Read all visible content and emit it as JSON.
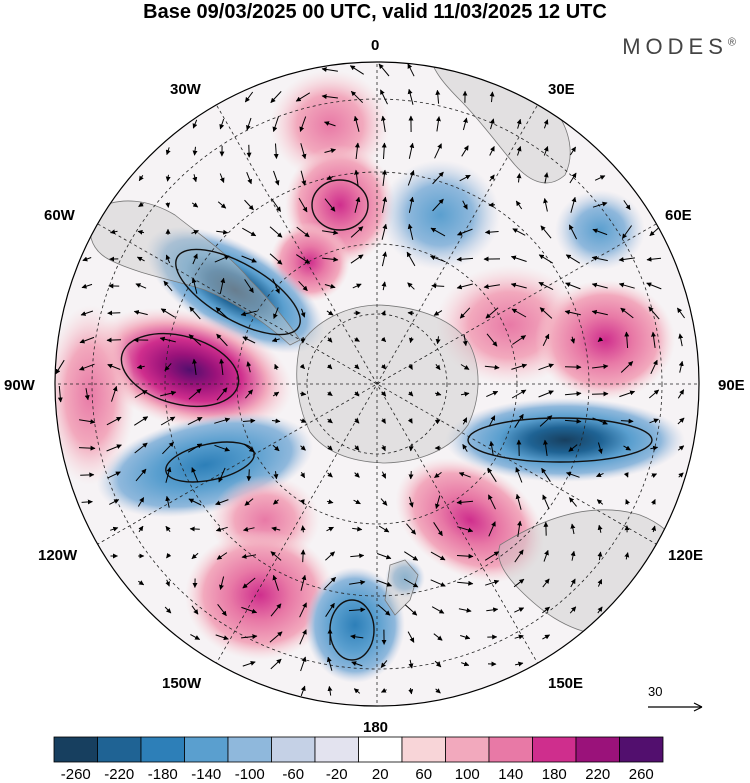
{
  "title": "Base 09/03/2025 00 UTC, valid 11/03/2025 12 UTC",
  "brand": "MODES",
  "brand_mark": "®",
  "longitude_labels": {
    "lon_0": "0",
    "lon_30e": "30E",
    "lon_60e": "60E",
    "lon_90e": "90E",
    "lon_120e": "120E",
    "lon_150e": "150E",
    "lon_180": "180",
    "lon_150w": "150W",
    "lon_120w": "120W",
    "lon_90w": "90W",
    "lon_60w": "60W",
    "lon_30w": "30W"
  },
  "wind_reference": {
    "value": "30"
  },
  "colorbar": {
    "labels": [
      "-260",
      "-220",
      "-180",
      "-140",
      "-100",
      "-60",
      "-20",
      "20",
      "60",
      "100",
      "140",
      "180",
      "220",
      "260"
    ],
    "colors": [
      "#173f5f",
      "#1f6394",
      "#2d7fb8",
      "#5a9fcf",
      "#8fb8dc",
      "#c5d1e6",
      "#e3e3ef",
      "#ffffff",
      "#f8d5d8",
      "#f2a9bd",
      "#e879a6",
      "#cf2e8d",
      "#9a127a",
      "#520f6e"
    ]
  },
  "map": {
    "projection": "south polar stereographic",
    "field": "geopotential height anomaly (shaded) with wind vectors",
    "anomalies": [
      {
        "sign": "negative",
        "location": "south of South America / 60W",
        "peak_class": "-220"
      },
      {
        "sign": "positive",
        "location": "Pacific near 90W",
        "peak_class": "220"
      },
      {
        "sign": "negative",
        "location": "south Pacific near 110W",
        "peak_class": "-180"
      },
      {
        "sign": "positive",
        "location": "south Atlantic near 20W",
        "peak_class": "180"
      },
      {
        "sign": "negative",
        "location": "south Atlantic near 30E",
        "peak_class": "-140"
      },
      {
        "sign": "positive",
        "location": "southern Indian Ocean near 75E",
        "peak_class": "140"
      },
      {
        "sign": "negative",
        "location": "southern Indian Ocean near 100E",
        "peak_class": "-220"
      },
      {
        "sign": "positive",
        "location": "south of Australia near 130E",
        "peak_class": "180"
      },
      {
        "sign": "positive",
        "location": "south Pacific near 150W",
        "peak_class": "140"
      },
      {
        "sign": "negative",
        "location": "near 170E south of New Zealand",
        "peak_class": "-180"
      }
    ]
  }
}
